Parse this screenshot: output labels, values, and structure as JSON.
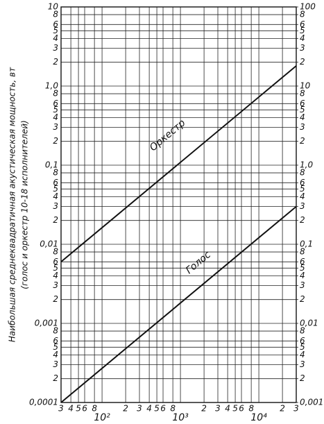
{
  "chart_data": {
    "type": "line",
    "y_label": "Наибольшая среднеквадратичная акустическая мощность, вт",
    "y_label_sub": "(голос и оркестр 10-18 исполнителей)",
    "xscale": "log",
    "yscale": "log",
    "grid": true,
    "x": [
      30,
      30000
    ],
    "series": [
      {
        "name": "Оркестр",
        "color": "#111111",
        "values": [
          0.006,
          1.8
        ]
      },
      {
        "name": "Голос",
        "color": "#111111",
        "values": [
          0.0001,
          0.03
        ]
      }
    ],
    "xlim": [
      30,
      30000
    ],
    "xticks": [
      {
        "value": 30,
        "label": "3"
      },
      {
        "value": 40,
        "label": "4"
      },
      {
        "value": 50,
        "label": "5"
      },
      {
        "value": 60,
        "label": "6"
      },
      {
        "value": 80,
        "label": "8"
      },
      {
        "value": 100,
        "label": "10²"
      },
      {
        "value": 200,
        "label": "2"
      },
      {
        "value": 300,
        "label": "3"
      },
      {
        "value": 400,
        "label": "4"
      },
      {
        "value": 500,
        "label": "5"
      },
      {
        "value": 600,
        "label": "6"
      },
      {
        "value": 800,
        "label": "8"
      },
      {
        "value": 1000,
        "label": "10³"
      },
      {
        "value": 2000,
        "label": "2"
      },
      {
        "value": 3000,
        "label": "3"
      },
      {
        "value": 4000,
        "label": "4"
      },
      {
        "value": 5000,
        "label": "5"
      },
      {
        "value": 6000,
        "label": "6"
      },
      {
        "value": 8000,
        "label": "8"
      },
      {
        "value": 10000,
        "label": "10⁴"
      },
      {
        "value": 20000,
        "label": "2"
      },
      {
        "value": 30000,
        "label": "3"
      }
    ],
    "ylim": [
      0.0001,
      10
    ],
    "yticks": [
      {
        "value": 0.0001,
        "label": "0,0001"
      },
      {
        "value": 0.0002,
        "label": "2"
      },
      {
        "value": 0.0003,
        "label": "3"
      },
      {
        "value": 0.0004,
        "label": "4"
      },
      {
        "value": 0.0005,
        "label": "5"
      },
      {
        "value": 0.0006,
        "label": "6"
      },
      {
        "value": 0.0008,
        "label": "8"
      },
      {
        "value": 0.001,
        "label": "0,001"
      },
      {
        "value": 0.002,
        "label": "2"
      },
      {
        "value": 0.003,
        "label": "3"
      },
      {
        "value": 0.004,
        "label": "4"
      },
      {
        "value": 0.005,
        "label": "5"
      },
      {
        "value": 0.006,
        "label": "6"
      },
      {
        "value": 0.008,
        "label": "8"
      },
      {
        "value": 0.01,
        "label": "0,01"
      },
      {
        "value": 0.02,
        "label": "2"
      },
      {
        "value": 0.03,
        "label": "3"
      },
      {
        "value": 0.04,
        "label": "4"
      },
      {
        "value": 0.05,
        "label": "5"
      },
      {
        "value": 0.06,
        "label": "6"
      },
      {
        "value": 0.08,
        "label": "8"
      },
      {
        "value": 0.1,
        "label": "0,1"
      },
      {
        "value": 0.2,
        "label": "2"
      },
      {
        "value": 0.3,
        "label": "3"
      },
      {
        "value": 0.4,
        "label": "4"
      },
      {
        "value": 0.5,
        "label": "5"
      },
      {
        "value": 0.6,
        "label": "6"
      },
      {
        "value": 0.8,
        "label": "8"
      },
      {
        "value": 1,
        "label": "1,0"
      },
      2,
      3,
      4,
      5,
      6,
      8,
      10
    ],
    "y2lim": [
      0.001,
      100
    ],
    "y2ticks": [
      {
        "value": 0.001,
        "label": "0,001"
      },
      {
        "value": 0.002,
        "label": "2"
      },
      {
        "value": 0.003,
        "label": "3"
      },
      {
        "value": 0.004,
        "label": "4"
      },
      {
        "value": 0.005,
        "label": "5"
      },
      {
        "value": 0.006,
        "label": "6"
      },
      {
        "value": 0.008,
        "label": "8"
      },
      {
        "value": 0.01,
        "label": "0,01"
      },
      {
        "value": 0.02,
        "label": "2"
      },
      {
        "value": 0.03,
        "label": "3"
      },
      {
        "value": 0.04,
        "label": "4"
      },
      {
        "value": 0.05,
        "label": "5"
      },
      {
        "value": 0.06,
        "label": "6"
      },
      {
        "value": 0.08,
        "label": "8"
      },
      {
        "value": 0.1,
        "label": "0,1"
      },
      {
        "value": 0.2,
        "label": "2"
      },
      {
        "value": 0.3,
        "label": "3"
      },
      {
        "value": 0.4,
        "label": "4"
      },
      {
        "value": 0.5,
        "label": "5"
      },
      {
        "value": 0.6,
        "label": "6"
      },
      {
        "value": 0.8,
        "label": "8"
      },
      {
        "value": 1,
        "label": "1,0"
      },
      2,
      3,
      4,
      5,
      6,
      8,
      10,
      {
        "value": 20,
        "label": "2"
      },
      {
        "value": 30,
        "label": "3"
      },
      {
        "value": 40,
        "label": "4"
      },
      {
        "value": 50,
        "label": "5"
      },
      {
        "value": 60,
        "label": "6"
      },
      {
        "value": 80,
        "label": "8"
      },
      100
    ]
  }
}
